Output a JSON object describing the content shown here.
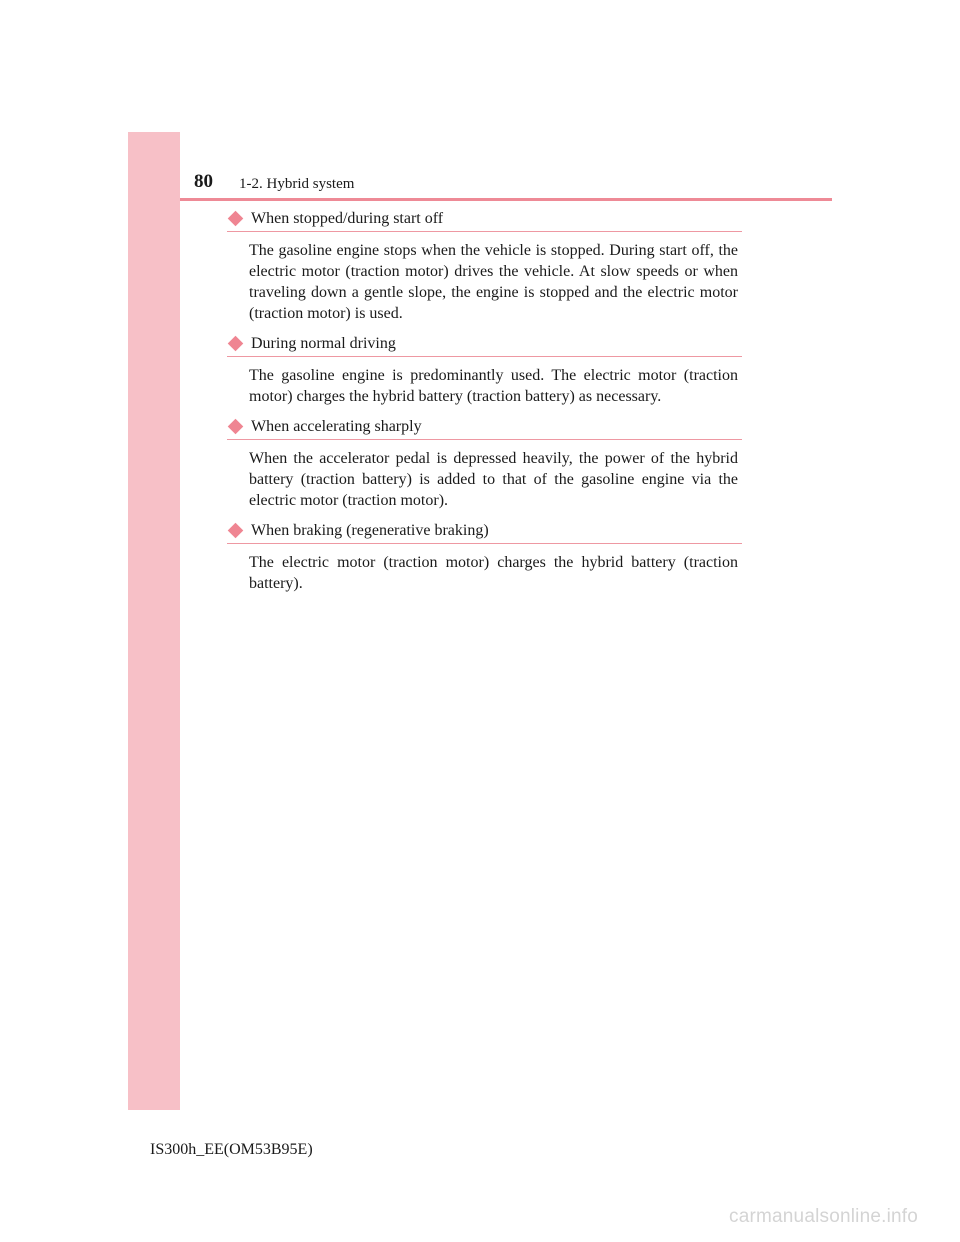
{
  "header": {
    "page_number": "80",
    "section": "1-2. Hybrid system"
  },
  "sections": [
    {
      "heading": "When stopped/during start off",
      "body": "The gasoline engine stops when the vehicle is stopped. During start off, the electric motor (traction motor) drives the vehicle. At slow speeds or when traveling down a gentle slope, the engine is stopped and the electric motor (traction motor) is used."
    },
    {
      "heading": "During normal driving",
      "body": "The gasoline engine is predominantly used. The electric motor (traction motor) charges the hybrid battery (traction battery) as necessary."
    },
    {
      "heading": "When accelerating sharply",
      "body": "When the accelerator pedal is depressed heavily, the power of the hybrid battery (traction battery) is added to that of the gasoline engine via the electric motor (traction motor)."
    },
    {
      "heading": "When braking (regenerative braking)",
      "body": "The electric motor (traction motor) charges the hybrid battery (traction battery)."
    }
  ],
  "footer": {
    "model_code": "IS300h_EE(OM53B95E)",
    "watermark": "carmanualsonline.info"
  },
  "colors": {
    "accent": "#ef8592",
    "side_band": "#f7c0c7"
  }
}
